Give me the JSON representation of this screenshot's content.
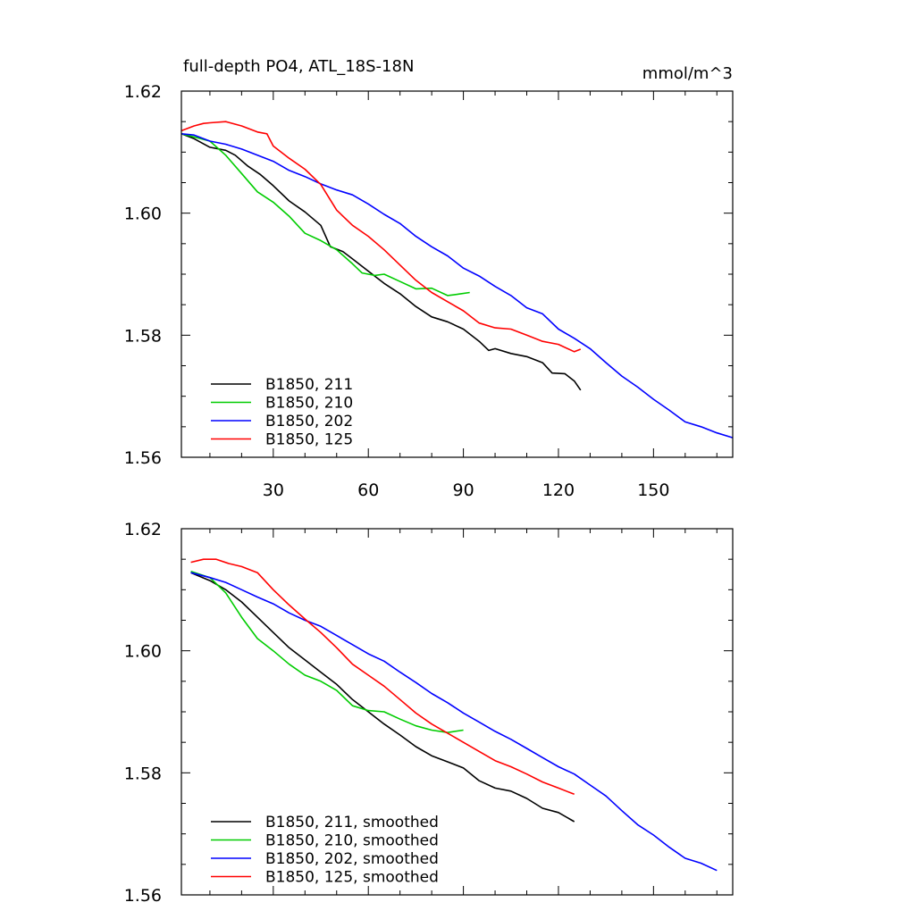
{
  "chart_data": [
    {
      "type": "line",
      "title": "full-depth PO4, ATL_18S-18N",
      "units": "mmol/m^3",
      "xlim": [
        1,
        175
      ],
      "ylim": [
        1.56,
        1.62
      ],
      "xticks": [
        30,
        60,
        90,
        120,
        150
      ],
      "yticks": [
        1.56,
        1.58,
        1.6,
        1.62
      ],
      "ytick_labels": [
        "1.56",
        "1.58",
        "1.60",
        "1.62"
      ],
      "legend_position": "bottom-left",
      "series": [
        {
          "name": "B1850, 211",
          "color": "#000000",
          "x": [
            1,
            5,
            10,
            15,
            18,
            22,
            26,
            30,
            35,
            40,
            45,
            48,
            52,
            55,
            60,
            65,
            70,
            75,
            80,
            85,
            90,
            95,
            98,
            100,
            105,
            110,
            115,
            118,
            122,
            125,
            127
          ],
          "y": [
            1.613,
            1.6122,
            1.6108,
            1.6103,
            1.6095,
            1.6077,
            1.6063,
            1.6045,
            1.602,
            1.6002,
            1.598,
            1.5945,
            1.5937,
            1.5925,
            1.5905,
            1.5885,
            1.5868,
            1.5847,
            1.583,
            1.5822,
            1.581,
            1.579,
            1.5775,
            1.5778,
            1.577,
            1.5765,
            1.5755,
            1.5738,
            1.5737,
            1.5725,
            1.571
          ]
        },
        {
          "name": "B1850, 210",
          "color": "#00cc00",
          "x": [
            1,
            5,
            10,
            15,
            20,
            25,
            30,
            35,
            40,
            45,
            50,
            55,
            58,
            62,
            65,
            70,
            75,
            80,
            85,
            88,
            92
          ],
          "y": [
            1.613,
            1.6125,
            1.6118,
            1.6095,
            1.6065,
            1.6035,
            1.6018,
            1.5995,
            1.5967,
            1.5955,
            1.594,
            1.5917,
            1.5902,
            1.5898,
            1.59,
            1.5888,
            1.5876,
            1.5877,
            1.5865,
            1.5867,
            1.587
          ]
        },
        {
          "name": "B1850, 202",
          "color": "#0000ff",
          "x": [
            1,
            5,
            10,
            15,
            20,
            25,
            30,
            35,
            40,
            45,
            50,
            55,
            60,
            65,
            70,
            75,
            80,
            85,
            90,
            95,
            100,
            105,
            110,
            115,
            120,
            125,
            130,
            135,
            140,
            145,
            150,
            155,
            160,
            165,
            170,
            175
          ],
          "y": [
            1.613,
            1.6128,
            1.6118,
            1.6113,
            1.6105,
            1.6095,
            1.6085,
            1.607,
            1.606,
            1.6048,
            1.6038,
            1.603,
            1.6015,
            1.5998,
            1.5983,
            1.5962,
            1.5945,
            1.593,
            1.591,
            1.5897,
            1.588,
            1.5865,
            1.5845,
            1.5835,
            1.581,
            1.5795,
            1.5778,
            1.5755,
            1.5733,
            1.5715,
            1.5695,
            1.5677,
            1.5658,
            1.565,
            1.564,
            1.5632
          ]
        },
        {
          "name": "B1850, 125",
          "color": "#ff0000",
          "x": [
            1,
            5,
            8,
            10,
            15,
            20,
            25,
            28,
            30,
            35,
            40,
            45,
            50,
            55,
            60,
            65,
            70,
            75,
            80,
            85,
            90,
            95,
            100,
            105,
            110,
            115,
            120,
            125,
            127
          ],
          "y": [
            1.6135,
            1.6143,
            1.6147,
            1.6148,
            1.615,
            1.6143,
            1.6133,
            1.613,
            1.611,
            1.609,
            1.6072,
            1.6047,
            1.6005,
            1.598,
            1.5962,
            1.594,
            1.5915,
            1.589,
            1.587,
            1.5855,
            1.584,
            1.582,
            1.5812,
            1.581,
            1.58,
            1.579,
            1.5785,
            1.5773,
            1.5777
          ]
        }
      ]
    },
    {
      "type": "line",
      "title": "",
      "xlim": [
        1,
        175
      ],
      "ylim": [
        1.56,
        1.62
      ],
      "xticks": [
        30,
        60,
        90,
        120,
        150
      ],
      "yticks": [
        1.56,
        1.58,
        1.6,
        1.62
      ],
      "ytick_labels": [
        "1.56",
        "1.58",
        "1.60",
        "1.62"
      ],
      "legend_position": "bottom-left",
      "series": [
        {
          "name": "B1850, 211, smoothed",
          "color": "#000000",
          "x": [
            4,
            10,
            15,
            20,
            25,
            30,
            35,
            40,
            45,
            50,
            55,
            60,
            65,
            70,
            75,
            80,
            85,
            90,
            95,
            100,
            105,
            110,
            115,
            120,
            125
          ],
          "y": [
            1.6128,
            1.6115,
            1.61,
            1.608,
            1.6055,
            1.603,
            1.6005,
            1.5985,
            1.5965,
            1.5945,
            1.592,
            1.59,
            1.588,
            1.5862,
            1.5843,
            1.5828,
            1.5818,
            1.5808,
            1.5787,
            1.5775,
            1.577,
            1.5758,
            1.5742,
            1.5735,
            1.572
          ]
        },
        {
          "name": "B1850, 210, smoothed",
          "color": "#00cc00",
          "x": [
            4,
            10,
            15,
            20,
            25,
            30,
            35,
            40,
            45,
            50,
            55,
            60,
            65,
            70,
            75,
            80,
            85,
            90
          ],
          "y": [
            1.613,
            1.612,
            1.6095,
            1.6055,
            1.602,
            1.6,
            1.5978,
            1.596,
            1.595,
            1.5935,
            1.591,
            1.5902,
            1.59,
            1.5888,
            1.5877,
            1.587,
            1.5866,
            1.587
          ]
        },
        {
          "name": "B1850, 202, smoothed",
          "color": "#0000ff",
          "x": [
            4,
            10,
            15,
            20,
            25,
            30,
            35,
            40,
            45,
            50,
            55,
            60,
            65,
            70,
            75,
            80,
            85,
            90,
            95,
            100,
            105,
            110,
            115,
            120,
            125,
            130,
            135,
            140,
            145,
            150,
            155,
            160,
            165,
            170
          ],
          "y": [
            1.6128,
            1.612,
            1.6112,
            1.61,
            1.6088,
            1.6077,
            1.6062,
            1.605,
            1.604,
            1.6025,
            1.601,
            1.5995,
            1.5983,
            1.5965,
            1.5948,
            1.593,
            1.5915,
            1.5898,
            1.5883,
            1.5868,
            1.5855,
            1.584,
            1.5825,
            1.581,
            1.5798,
            1.578,
            1.5762,
            1.5738,
            1.5715,
            1.5698,
            1.5678,
            1.566,
            1.5652,
            1.564
          ]
        },
        {
          "name": "B1850, 125, smoothed",
          "color": "#ff0000",
          "x": [
            4,
            8,
            12,
            16,
            20,
            25,
            30,
            35,
            40,
            45,
            50,
            55,
            60,
            65,
            70,
            75,
            80,
            85,
            90,
            95,
            100,
            105,
            110,
            115,
            120,
            125
          ],
          "y": [
            1.6145,
            1.615,
            1.615,
            1.6143,
            1.6138,
            1.6128,
            1.61,
            1.6075,
            1.6052,
            1.603,
            1.6005,
            1.5978,
            1.596,
            1.5942,
            1.592,
            1.5898,
            1.588,
            1.5865,
            1.585,
            1.5835,
            1.582,
            1.581,
            1.5798,
            1.5785,
            1.5775,
            1.5765
          ]
        }
      ]
    }
  ]
}
